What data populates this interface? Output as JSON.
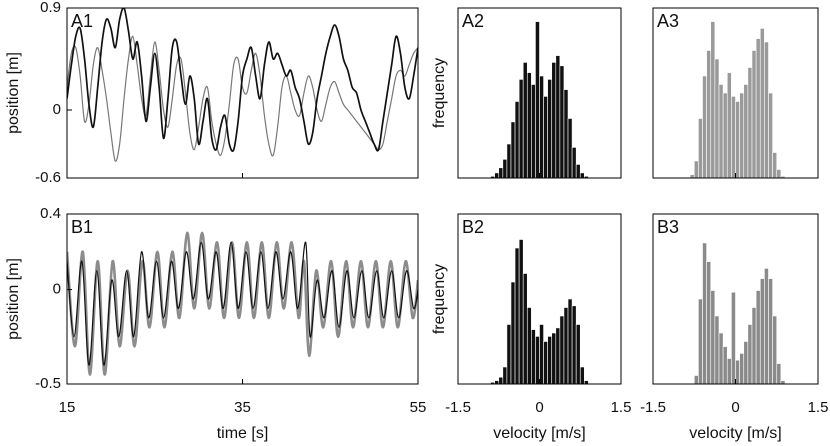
{
  "chart_data": [
    {
      "type": "line",
      "label": "A1",
      "ylabel": "position [m]",
      "xlim": [
        15,
        55
      ],
      "xticks": [
        15,
        35,
        55
      ],
      "show_xtick_labels": false,
      "ylim": [
        -0.6,
        0.9
      ],
      "yticks": [
        0.9,
        0,
        -0.6
      ],
      "x": [
        15,
        15.5,
        16,
        16.5,
        17,
        17.5,
        18,
        18.5,
        19,
        19.5,
        20,
        20.5,
        21,
        21.5,
        22,
        22.5,
        23,
        23.5,
        24,
        24.5,
        25,
        25.5,
        26,
        26.5,
        27,
        27.5,
        28,
        28.5,
        29,
        29.5,
        30,
        30.5,
        31,
        31.5,
        32,
        32.5,
        33,
        33.5,
        34,
        34.5,
        35,
        35.5,
        36,
        36.5,
        37,
        37.5,
        38,
        38.5,
        39,
        39.5,
        40,
        40.5,
        41,
        41.5,
        42,
        42.5,
        43,
        43.5,
        44,
        44.5,
        45,
        45.5,
        46,
        46.5,
        47,
        47.5,
        48,
        48.5,
        49,
        49.5,
        50,
        50.5,
        51,
        51.5,
        52,
        52.5,
        53,
        53.5,
        54,
        54.5,
        55
      ],
      "series": [
        {
          "color": "#777777",
          "width": 1.2,
          "values": [
            0.2,
            0.5,
            0.55,
            0.3,
            -0.1,
            0.05,
            0.4,
            0.55,
            0.35,
            0.1,
            -0.2,
            -0.45,
            -0.3,
            0.1,
            0.45,
            0.65,
            0.4,
            0.1,
            -0.05,
            0.3,
            0.6,
            0.35,
            0.0,
            -0.15,
            0.1,
            0.4,
            0.45,
            0.15,
            -0.2,
            -0.35,
            -0.15,
            0.1,
            0.2,
            -0.1,
            -0.3,
            -0.4,
            -0.25,
            0.05,
            0.4,
            0.45,
            0.2,
            0.15,
            0.35,
            0.5,
            0.3,
            -0.05,
            -0.3,
            -0.4,
            -0.15,
            0.2,
            0.3,
            0.15,
            0.0,
            -0.05,
            0.15,
            0.3,
            0.2,
            0.0,
            -0.1,
            0.05,
            0.2,
            0.25,
            0.15,
            0.05,
            0.0,
            -0.05,
            -0.1,
            -0.15,
            -0.2,
            -0.25,
            -0.3,
            -0.35,
            -0.3,
            -0.1,
            0.1,
            0.3,
            0.35,
            0.3,
            0.4,
            0.5,
            0.55
          ]
        },
        {
          "color": "#111111",
          "width": 1.7,
          "values": [
            0.1,
            0.4,
            0.65,
            0.72,
            0.45,
            0.05,
            -0.15,
            0.2,
            0.6,
            0.8,
            0.72,
            0.55,
            0.8,
            0.9,
            0.7,
            0.45,
            0.6,
            0.3,
            -0.1,
            0.2,
            0.5,
            0.2,
            -0.25,
            0.1,
            0.55,
            0.6,
            0.3,
            0.05,
            0.3,
            0.1,
            -0.3,
            -0.1,
            0.1,
            -0.25,
            -0.35,
            -0.15,
            -0.05,
            -0.3,
            -0.35,
            -0.1,
            0.3,
            0.45,
            0.55,
            0.3,
            0.1,
            0.4,
            0.6,
            0.45,
            0.5,
            0.4,
            0.3,
            0.35,
            0.2,
            0.1,
            -0.1,
            -0.3,
            -0.2,
            0.1,
            0.3,
            0.5,
            0.65,
            0.75,
            0.65,
            0.45,
            0.35,
            0.2,
            0.15,
            0.0,
            -0.1,
            -0.2,
            -0.3,
            -0.35,
            -0.1,
            0.15,
            0.4,
            0.65,
            0.5,
            0.2,
            0.1,
            0.3,
            0.55
          ]
        }
      ]
    },
    {
      "type": "histogram",
      "label": "A2",
      "ylabel": "frequency",
      "xlim": [
        -1.5,
        1.5
      ],
      "xticks": [
        -1.5,
        0,
        1.5
      ],
      "show_xtick_labels": false,
      "ylim": [
        0,
        100
      ],
      "color": "#111111",
      "bins": [
        -0.9,
        -0.825,
        -0.75,
        -0.675,
        -0.6,
        -0.525,
        -0.45,
        -0.375,
        -0.3,
        -0.225,
        -0.15,
        -0.075,
        0,
        0.075,
        0.15,
        0.225,
        0.3,
        0.375,
        0.45,
        0.525,
        0.6,
        0.675,
        0.75,
        0.825,
        0.9
      ],
      "values": [
        1,
        3,
        6,
        11,
        20,
        33,
        45,
        58,
        68,
        62,
        55,
        92,
        60,
        48,
        58,
        68,
        72,
        66,
        52,
        35,
        18,
        8,
        3,
        1
      ]
    },
    {
      "type": "histogram",
      "label": "A3",
      "xlim": [
        -1.5,
        1.5
      ],
      "xticks": [
        -1.5,
        0,
        1.5
      ],
      "show_xtick_labels": false,
      "ylim": [
        0,
        100
      ],
      "color": "#9a9a9a",
      "bins": [
        -0.9,
        -0.825,
        -0.75,
        -0.675,
        -0.6,
        -0.525,
        -0.45,
        -0.375,
        -0.3,
        -0.225,
        -0.15,
        -0.075,
        0,
        0.075,
        0.15,
        0.225,
        0.3,
        0.375,
        0.45,
        0.525,
        0.6,
        0.675,
        0.75,
        0.825,
        0.9
      ],
      "values": [
        0,
        2,
        10,
        35,
        60,
        75,
        92,
        70,
        55,
        50,
        62,
        48,
        45,
        50,
        55,
        65,
        75,
        82,
        88,
        80,
        50,
        15,
        5,
        1
      ]
    },
    {
      "type": "line",
      "label": "B1",
      "ylabel": "position [m]",
      "xlabel": "time [s]",
      "xlim": [
        15,
        55
      ],
      "xticks": [
        15,
        35,
        55
      ],
      "ylim": [
        -0.5,
        0.4
      ],
      "yticks": [
        0.4,
        0,
        -0.5
      ],
      "series": [
        {
          "color": "#8c8c8c",
          "width": 2.6,
          "x": [
            15,
            15.9,
            16.8,
            17.6,
            18.5,
            19.3,
            20.2,
            21.0,
            21.9,
            22.7,
            23.6,
            24.4,
            25.3,
            26.1,
            27.0,
            27.8,
            28.7,
            29.5,
            30.4,
            31.2,
            32.1,
            32.9,
            33.8,
            34.6,
            35.5,
            36.3,
            37.2,
            38.0,
            38.9,
            39.7,
            40.6,
            41.4,
            42.0,
            42.6,
            43.4,
            44.2,
            45.1,
            45.9,
            46.8,
            47.6,
            48.5,
            49.3,
            50.2,
            51.0,
            51.9,
            52.7,
            53.6,
            54.4,
            55
          ],
          "values": [
            0.2,
            -0.3,
            0.2,
            -0.45,
            0.15,
            -0.45,
            0.15,
            -0.3,
            0.1,
            -0.3,
            0.15,
            -0.2,
            0.2,
            -0.2,
            0.2,
            -0.15,
            0.3,
            -0.1,
            0.3,
            -0.1,
            0.25,
            -0.15,
            0.25,
            -0.15,
            0.25,
            -0.15,
            0.25,
            -0.15,
            0.25,
            -0.1,
            0.25,
            -0.15,
            0.15,
            -0.35,
            0.1,
            -0.2,
            0.15,
            -0.25,
            0.15,
            -0.2,
            0.15,
            -0.2,
            0.15,
            -0.2,
            0.15,
            -0.2,
            0.15,
            -0.15,
            0.05
          ]
        },
        {
          "color": "#111111",
          "width": 1.2,
          "x": [
            15,
            15.8,
            16.7,
            17.5,
            18.4,
            19.2,
            20.1,
            20.9,
            21.8,
            22.6,
            23.5,
            24.3,
            25.2,
            26.0,
            26.9,
            27.7,
            28.6,
            29.4,
            30.3,
            31.1,
            32.0,
            32.8,
            33.7,
            34.5,
            35.4,
            36.2,
            37.1,
            37.9,
            38.8,
            39.6,
            40.5,
            41.3,
            42.2,
            42.7,
            43.5,
            44.3,
            45.2,
            46.0,
            46.9,
            47.7,
            48.6,
            49.4,
            50.3,
            51.1,
            52.0,
            52.8,
            53.7,
            54.5,
            55
          ],
          "values": [
            0.15,
            -0.25,
            0.15,
            -0.4,
            0.1,
            -0.4,
            0.05,
            -0.25,
            0.1,
            -0.25,
            0.2,
            -0.15,
            0.15,
            -0.15,
            0.15,
            -0.1,
            0.2,
            -0.05,
            0.25,
            -0.05,
            0.2,
            -0.1,
            0.25,
            -0.1,
            0.2,
            -0.1,
            0.2,
            -0.1,
            0.2,
            -0.05,
            0.2,
            -0.1,
            0.25,
            -0.25,
            0.05,
            -0.15,
            0.1,
            -0.2,
            0.1,
            -0.15,
            0.1,
            -0.15,
            0.1,
            -0.15,
            0.1,
            -0.15,
            0.1,
            -0.1,
            0.0
          ]
        }
      ]
    },
    {
      "type": "histogram",
      "label": "B2",
      "ylabel": "frequency",
      "xlabel": "velocity [m/s]",
      "xlim": [
        -1.5,
        1.5
      ],
      "xticks": [
        -1.5,
        0,
        1.5
      ],
      "ylim": [
        0,
        100
      ],
      "color": "#111111",
      "bins": [
        -0.9,
        -0.825,
        -0.75,
        -0.675,
        -0.6,
        -0.525,
        -0.45,
        -0.375,
        -0.3,
        -0.225,
        -0.15,
        -0.075,
        0,
        0.075,
        0.15,
        0.225,
        0.3,
        0.375,
        0.45,
        0.525,
        0.6,
        0.675,
        0.75,
        0.825,
        0.9
      ],
      "values": [
        1,
        2,
        4,
        10,
        35,
        60,
        80,
        85,
        65,
        45,
        32,
        28,
        35,
        25,
        28,
        30,
        33,
        40,
        45,
        50,
        46,
        35,
        10,
        2
      ]
    },
    {
      "type": "histogram",
      "label": "B3",
      "xlabel": "velocity [m/s]",
      "xlim": [
        -1.5,
        1.5
      ],
      "xticks": [
        -1.5,
        0,
        1.5
      ],
      "ylim": [
        0,
        100
      ],
      "color": "#8a8a8a",
      "bins": [
        -0.9,
        -0.825,
        -0.75,
        -0.675,
        -0.6,
        -0.525,
        -0.45,
        -0.375,
        -0.3,
        -0.225,
        -0.15,
        -0.075,
        0,
        0.075,
        0.15,
        0.225,
        0.3,
        0.375,
        0.45,
        0.525,
        0.6,
        0.675,
        0.75,
        0.825,
        0.9
      ],
      "values": [
        0,
        0,
        5,
        50,
        83,
        72,
        55,
        40,
        30,
        22,
        15,
        54,
        14,
        18,
        25,
        35,
        45,
        55,
        62,
        68,
        62,
        40,
        12,
        2
      ]
    }
  ]
}
